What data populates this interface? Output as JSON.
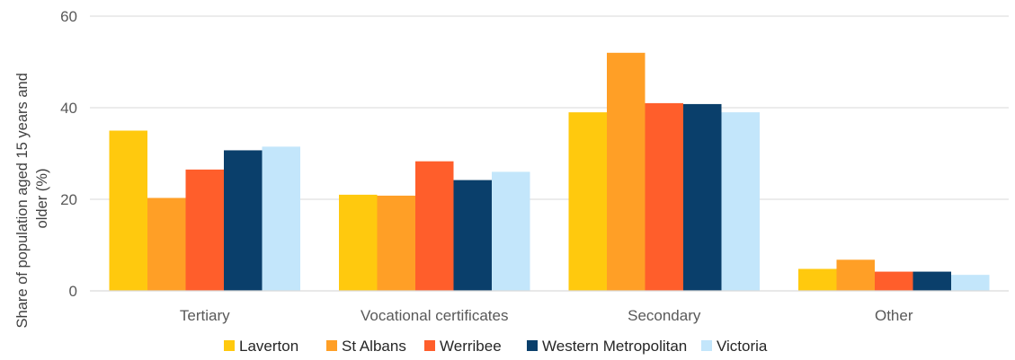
{
  "chart_data": {
    "type": "bar",
    "categories": [
      "Tertiary",
      "Vocational certificates",
      "Secondary",
      "Other"
    ],
    "series": [
      {
        "name": "Laverton",
        "color": "#FFC90E",
        "values": [
          35.0,
          21.0,
          39.0,
          4.8
        ]
      },
      {
        "name": "St Albans",
        "color": "#FF9F26",
        "values": [
          20.3,
          20.8,
          52.0,
          6.8
        ]
      },
      {
        "name": "Werribee",
        "color": "#FF5E2B",
        "values": [
          26.5,
          28.3,
          41.0,
          4.2
        ]
      },
      {
        "name": "Western Metropolitan",
        "color": "#0A3F6B",
        "values": [
          30.7,
          24.2,
          40.8,
          4.2
        ]
      },
      {
        "name": "Victoria",
        "color": "#C3E6FB",
        "values": [
          31.5,
          26.0,
          39.0,
          3.5
        ]
      }
    ],
    "ylabel_lines": [
      "Share of population aged 15 years and",
      "older  (%)"
    ],
    "ylim": [
      0,
      60
    ],
    "yticks": [
      0,
      20,
      40,
      60
    ],
    "grid": true,
    "legend_position": "bottom"
  }
}
